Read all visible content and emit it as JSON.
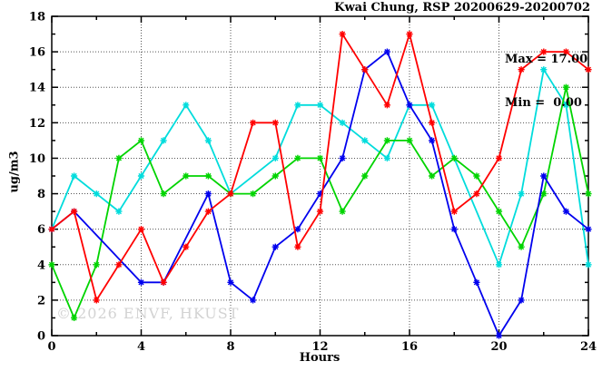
{
  "title": "Kwai Chung, RSP 20200629-20200702",
  "legend": {
    "max_label": "Max = 17.00",
    "min_label": "Min =  0.00"
  },
  "watermark": "© 2026 ENVF, HKUST",
  "chart_data": {
    "type": "line",
    "title": "Kwai Chung, RSP 20200629-20200702",
    "xlabel": "Hours",
    "ylabel": "ug/m3",
    "xlim": [
      0,
      24
    ],
    "ylim": [
      0,
      18
    ],
    "grid": true,
    "legend_position": "top-right-inside",
    "x_major_ticks": [
      0,
      4,
      8,
      12,
      16,
      20,
      24
    ],
    "y_major_ticks": [
      0,
      2,
      4,
      6,
      8,
      10,
      12,
      14,
      16,
      18
    ],
    "x_grid": [
      4,
      8,
      12,
      16,
      20
    ],
    "y_grid": [
      2,
      4,
      6,
      8,
      10,
      12,
      14,
      16
    ],
    "marker": "star",
    "x": [
      0,
      1,
      2,
      3,
      4,
      5,
      6,
      7,
      8,
      9,
      10,
      11,
      12,
      13,
      14,
      15,
      16,
      17,
      18,
      19,
      20,
      21,
      22,
      23,
      24
    ],
    "series": [
      {
        "name": "series-cyan",
        "color": "#00dcdc",
        "values": [
          6,
          9,
          8,
          7,
          9,
          11,
          13,
          11,
          8,
          null,
          10,
          13,
          13,
          12,
          11,
          10,
          13,
          13,
          null,
          null,
          4,
          8,
          15,
          13,
          4
        ]
      },
      {
        "name": "series-green",
        "color": "#00d400",
        "values": [
          4,
          1,
          4,
          10,
          11,
          8,
          9,
          9,
          8,
          8,
          9,
          10,
          10,
          7,
          9,
          11,
          11,
          9,
          10,
          9,
          7,
          5,
          8,
          14,
          8
        ]
      },
      {
        "name": "series-blue",
        "color": "#0000ee",
        "values": [
          6,
          7,
          null,
          null,
          3,
          3,
          null,
          8,
          3,
          2,
          5,
          6,
          8,
          10,
          15,
          16,
          13,
          11,
          6,
          3,
          0,
          2,
          9,
          7,
          6
        ]
      },
      {
        "name": "series-red",
        "color": "#ff0000",
        "values": [
          6,
          7,
          2,
          4,
          6,
          3,
          5,
          7,
          8,
          12,
          12,
          5,
          7,
          17,
          15,
          13,
          17,
          12,
          7,
          8,
          10,
          15,
          16,
          16,
          15
        ]
      }
    ],
    "stats": {
      "max": 17.0,
      "min": 0.0
    }
  }
}
